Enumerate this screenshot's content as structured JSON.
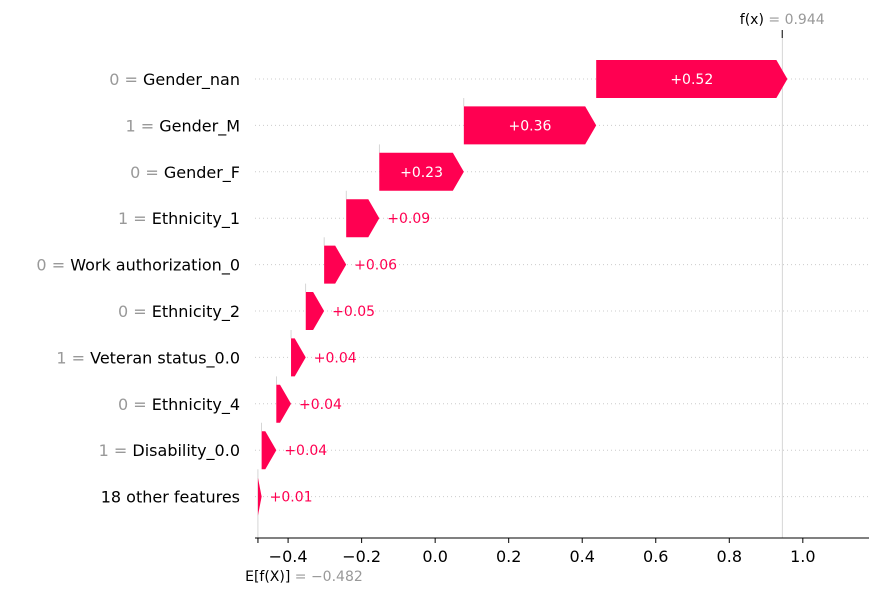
{
  "chart_data": {
    "type": "waterfall",
    "base_value": -0.482,
    "output_value": 0.944,
    "output_label": {
      "symbol": "f(x)",
      "eq": " = ",
      "value": "0.944"
    },
    "base_label": {
      "symbol": "E[f(X)]",
      "eq": " = ",
      "value": "−0.482"
    },
    "features": [
      {
        "value": "0",
        "eq": " = ",
        "name": "Gender_nan",
        "contribution": 0.52,
        "label": "+0.52"
      },
      {
        "value": "1",
        "eq": " = ",
        "name": "Gender_M",
        "contribution": 0.36,
        "label": "+0.36"
      },
      {
        "value": "0",
        "eq": " = ",
        "name": "Gender_F",
        "contribution": 0.23,
        "label": "+0.23"
      },
      {
        "value": "1",
        "eq": " = ",
        "name": "Ethnicity_1",
        "contribution": 0.09,
        "label": "+0.09"
      },
      {
        "value": "0",
        "eq": " = ",
        "name": "Work authorization_0",
        "contribution": 0.06,
        "label": "+0.06"
      },
      {
        "value": "0",
        "eq": " = ",
        "name": "Ethnicity_2",
        "contribution": 0.05,
        "label": "+0.05"
      },
      {
        "value": "1",
        "eq": " = ",
        "name": "Veteran status_0.0",
        "contribution": 0.04,
        "label": "+0.04"
      },
      {
        "value": "0",
        "eq": " = ",
        "name": "Ethnicity_4",
        "contribution": 0.04,
        "label": "+0.04"
      },
      {
        "value": "1",
        "eq": " = ",
        "name": "Disability_0.0",
        "contribution": 0.04,
        "label": "+0.04"
      },
      {
        "value": "",
        "eq": "",
        "name": "18 other features",
        "contribution": 0.01,
        "label": "+0.01"
      }
    ],
    "xticks": [
      "−0.4",
      "−0.2",
      "0.0",
      "0.2",
      "0.4",
      "0.6",
      "0.8",
      "1.0"
    ],
    "xtick_values": [
      -0.4,
      -0.2,
      0.0,
      0.2,
      0.4,
      0.6,
      0.8,
      1.0
    ],
    "xlim": [
      -0.49,
      1.18
    ],
    "positive_color": "#ff0051",
    "grid": "dotted horizontal"
  }
}
